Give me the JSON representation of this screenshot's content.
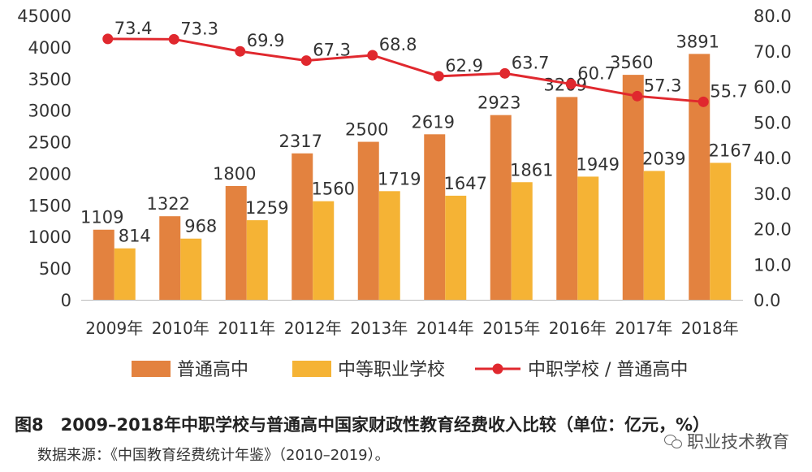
{
  "chart_data": {
    "type": "bar+line",
    "categories": [
      "2009年",
      "2010年",
      "2011年",
      "2012年",
      "2013年",
      "2014年",
      "2015年",
      "2016年",
      "2017年",
      "2018年"
    ],
    "series": [
      {
        "name": "普通高中",
        "type": "bar",
        "axis": "left",
        "color": "#E3823F",
        "values": [
          1109,
          1322,
          1800,
          2317,
          2500,
          2619,
          2923,
          3209,
          3560,
          3891
        ]
      },
      {
        "name": "中等职业学校",
        "type": "bar",
        "axis": "left",
        "color": "#F5B335",
        "values": [
          814,
          968,
          1259,
          1560,
          1719,
          1647,
          1861,
          1949,
          2039,
          2167
        ]
      },
      {
        "name": "中职学校 / 普通高中",
        "type": "line",
        "axis": "right",
        "color": "#E0282E",
        "values": [
          73.4,
          73.3,
          69.9,
          67.3,
          68.8,
          62.9,
          63.7,
          60.7,
          57.3,
          55.7
        ]
      }
    ],
    "y_left": {
      "min": 0,
      "max": 45000,
      "ticks": [
        "0",
        "500",
        "1000",
        "1500",
        "2000",
        "2500",
        "3000",
        "3500",
        "4000",
        "45000"
      ]
    },
    "y_right": {
      "min": 0,
      "max": 80,
      "ticks": [
        "0.0",
        "10.0",
        "20.0",
        "30.0",
        "40.0",
        "50.0",
        "60.0",
        "70.0",
        "80.0"
      ]
    },
    "line_labels": [
      "73.4",
      "73.3",
      "69.9",
      "67.3",
      "68.8",
      "62.9",
      "63.7",
      "60.7",
      "57.3",
      "55.7"
    ],
    "legend_position": "bottom",
    "grid": false
  },
  "caption": "图8　2009–2018年中职学校与普通高中国家财政性教育经费收入比较（单位：亿元，%）",
  "source": "数据来源：《中国教育经费统计年鉴》（2010–2019）。",
  "watermark": "职业技术教育"
}
